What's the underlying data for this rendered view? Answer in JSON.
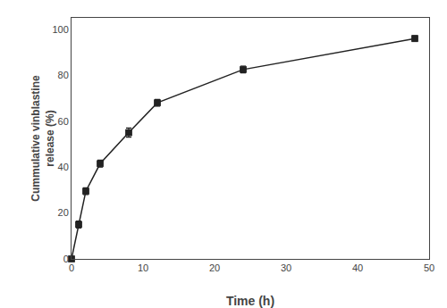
{
  "chart_data": {
    "type": "line",
    "x": [
      0,
      1,
      2,
      4,
      8,
      12,
      24,
      48
    ],
    "values": [
      0,
      15,
      29.5,
      41.5,
      55,
      68,
      82.5,
      96
    ],
    "yerr": [
      0,
      1.5,
      1.5,
      1.5,
      2.0,
      1.5,
      1.5,
      1.2
    ],
    "xlabel": "Time (h)",
    "ylabel": "Cummulative vinblastine\nrelease (%)",
    "xlim": [
      0,
      50
    ],
    "ylim": [
      0,
      105
    ],
    "xticks": [
      0,
      10,
      20,
      30,
      40,
      50
    ],
    "yticks": [
      0,
      20,
      40,
      60,
      80,
      100
    ],
    "color": "#222222",
    "marker": "square",
    "grid": false
  }
}
